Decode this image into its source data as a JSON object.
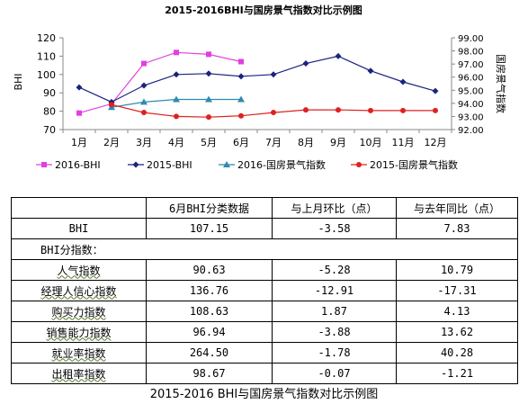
{
  "chart_data": {
    "type": "line",
    "title": "2015-2016BHI与国房景气指数对比示例图",
    "ylabel": "BHI",
    "y2label": "国房景气指数",
    "categories": [
      "1月",
      "2月",
      "3月",
      "4月",
      "5月",
      "6月",
      "7月",
      "8月",
      "9月",
      "10月",
      "11月",
      "12月"
    ],
    "ylim": [
      70,
      120
    ],
    "yticks": [
      "70",
      "80",
      "90",
      "100",
      "110",
      "120"
    ],
    "y2lim": [
      92,
      99
    ],
    "y2ticks": [
      "92.00",
      "93.00",
      "94.00",
      "95.00",
      "96.00",
      "97.00",
      "98.00",
      "99.00"
    ],
    "grid": false,
    "legend_position": "bottom",
    "series": [
      {
        "name": "2016-BHI",
        "axis": "left",
        "color": "#e040e0",
        "marker": "square",
        "values": [
          79,
          84,
          106,
          112,
          111,
          107,
          null,
          null,
          null,
          null,
          null,
          null
        ]
      },
      {
        "name": "2015-BHI",
        "axis": "left",
        "color": "#1a237e",
        "marker": "diamond",
        "values": [
          93,
          85,
          94,
          100,
          100.5,
          99,
          100,
          106,
          110,
          102,
          96,
          91
        ]
      },
      {
        "name": "2016-国房景气指数",
        "axis": "right",
        "color": "#2e8bb0",
        "marker": "triangle",
        "values": [
          null,
          93.7,
          94.1,
          94.3,
          94.3,
          94.3,
          null,
          null,
          null,
          null,
          null,
          null
        ]
      },
      {
        "name": "2015-国房景气指数",
        "axis": "right",
        "color": "#e02020",
        "marker": "dot",
        "values": [
          null,
          93.9,
          93.3,
          93.0,
          92.95,
          93.05,
          93.3,
          93.5,
          93.5,
          93.45,
          93.45,
          93.45
        ]
      }
    ]
  },
  "table": {
    "headers": [
      "",
      "6月BHI分类数据",
      "与上月环比（点）",
      "与去年同比（点）"
    ],
    "bhi_row": {
      "label": "BHI",
      "value": "107.15",
      "mom": "-3.58",
      "yoy": "7.83"
    },
    "section_label": "BHI分指数：",
    "rows": [
      {
        "label": "人气指数",
        "value": "90.63",
        "mom": "-5.28",
        "yoy": "10.79"
      },
      {
        "label": "经理人信心指数",
        "value": "136.76",
        "mom": "-12.91",
        "yoy": "-17.31"
      },
      {
        "label": "购买力指数",
        "value": "108.63",
        "mom": "1.87",
        "yoy": "4.13"
      },
      {
        "label": "销售能力指数",
        "value": "96.94",
        "mom": "-3.88",
        "yoy": "13.62"
      },
      {
        "label": "就业率指数",
        "value": "264.50",
        "mom": "-1.78",
        "yoy": "40.28"
      },
      {
        "label": "出租率指数",
        "value": "98.67",
        "mom": "-0.07",
        "yoy": "-1.21"
      }
    ]
  },
  "caption": "2015-2016 BHI与国房景气指数对比示例图"
}
